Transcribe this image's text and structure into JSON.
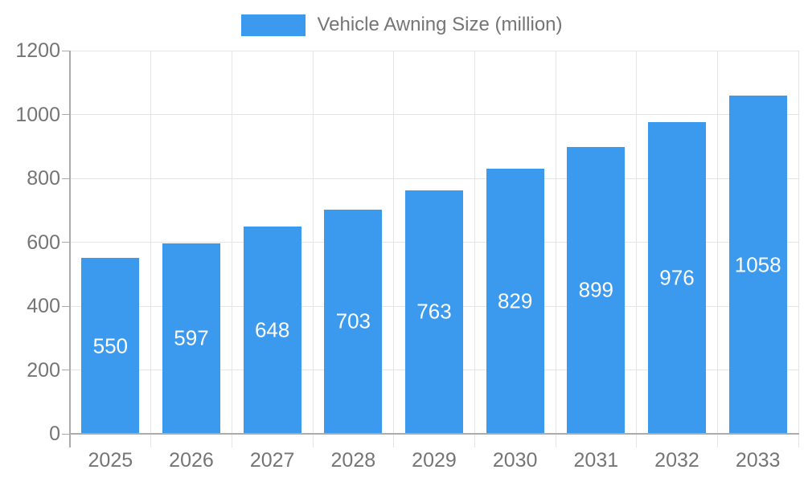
{
  "chart_data": {
    "type": "bar",
    "title": "Vehicle Awning Size (million)",
    "series_name": "Vehicle Awning Size (million)",
    "categories": [
      "2025",
      "2026",
      "2027",
      "2028",
      "2029",
      "2030",
      "2031",
      "2032",
      "2033"
    ],
    "values": [
      550,
      597,
      648,
      703,
      763,
      829,
      899,
      976,
      1058
    ],
    "value_labels": [
      "550",
      "597",
      "648",
      "703",
      "763",
      "829",
      "899",
      "976",
      "1058"
    ],
    "xlabel": "",
    "ylabel": "",
    "ylim": [
      0,
      1200
    ],
    "yticks": [
      0,
      200,
      400,
      600,
      800,
      1000,
      1200
    ],
    "ytick_labels": [
      "0",
      "200",
      "400",
      "600",
      "800",
      "1000",
      "1200"
    ],
    "grid": true,
    "legend_position": "top-center",
    "colors": {
      "bar": "#3b99ee",
      "grid": "#e5e5e5",
      "axis_line": "#ababab",
      "axis_text": "#757575",
      "value_label": "#ffffff",
      "background": "#ffffff"
    }
  },
  "legend": {
    "label": "Vehicle Awning Size (million)"
  }
}
